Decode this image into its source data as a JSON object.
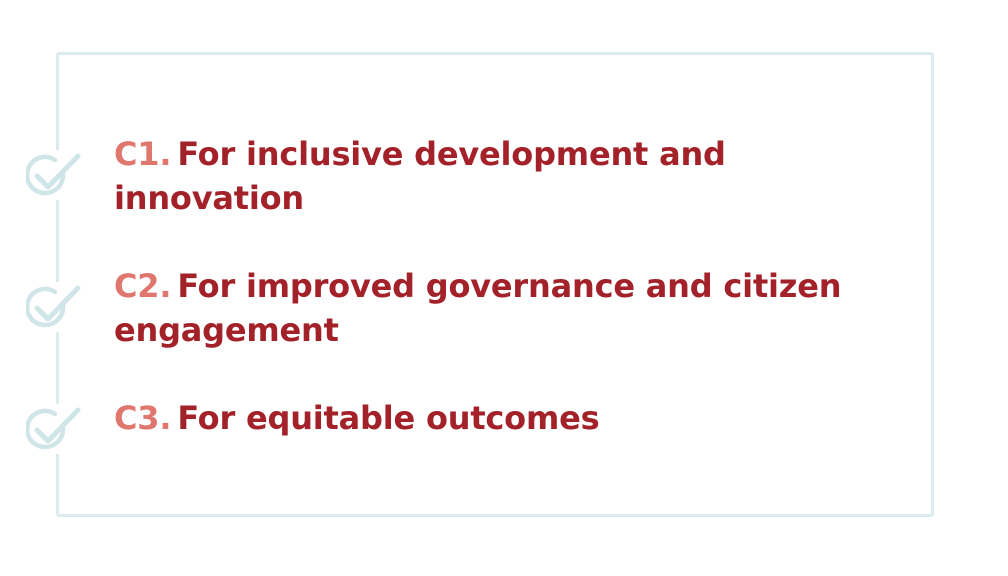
{
  "items": [
    {
      "code": "C1.",
      "text": "For inclusive development and innovation",
      "icon": "check-circle-icon"
    },
    {
      "code": "C2.",
      "text": "For improved governance and citizen engagement",
      "icon": "check-circle-icon"
    },
    {
      "code": "C3.",
      "text": "For equitable outcomes",
      "icon": "check-circle-icon"
    }
  ],
  "colors": {
    "frame": "#dcecee",
    "code": "#e0776f",
    "text": "#a3222a",
    "icon": "#cfe5e8"
  }
}
